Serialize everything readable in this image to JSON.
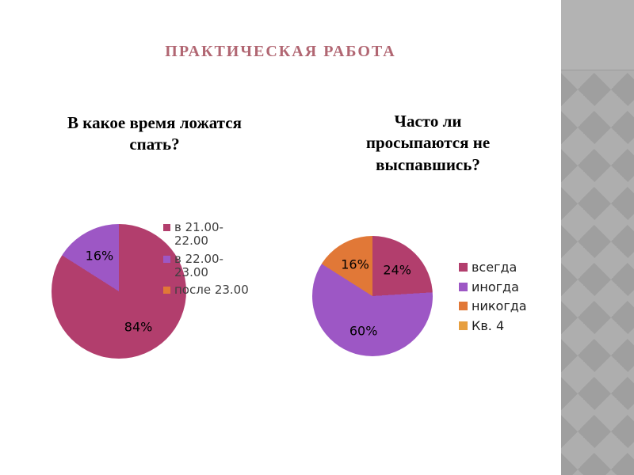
{
  "slide": {
    "title": "ПРАКТИЧЕСКАЯ РАБОТА",
    "title_color": "#9e4150",
    "background_color": "#ffffff",
    "side_panel_color": "#a9a9a9"
  },
  "chart_data": [
    {
      "type": "pie",
      "title": "В какое время ложатся спать?",
      "labels": [
        "в 21.00-22.00",
        "в 22.00-23.00",
        "после 23.00"
      ],
      "values": [
        84,
        16,
        0
      ],
      "colors": [
        "#b23e6d",
        "#9d57c5",
        "#e17837"
      ],
      "data_labels": [
        "84%",
        "16%"
      ],
      "legend_position": "right",
      "start_angle_deg": 0,
      "direction": "clockwise"
    },
    {
      "type": "pie",
      "title": "Часто ли просыпаются не выспавшись?",
      "labels": [
        "всегда",
        "иногда",
        "никогда",
        "Кв. 4"
      ],
      "values": [
        24,
        60,
        16,
        0
      ],
      "colors": [
        "#b23e6d",
        "#9d57c5",
        "#e17837",
        "#e79f3f"
      ],
      "data_labels": [
        "24%",
        "60%",
        "16%"
      ],
      "legend_position": "right",
      "start_angle_deg": 0,
      "direction": "clockwise"
    }
  ]
}
